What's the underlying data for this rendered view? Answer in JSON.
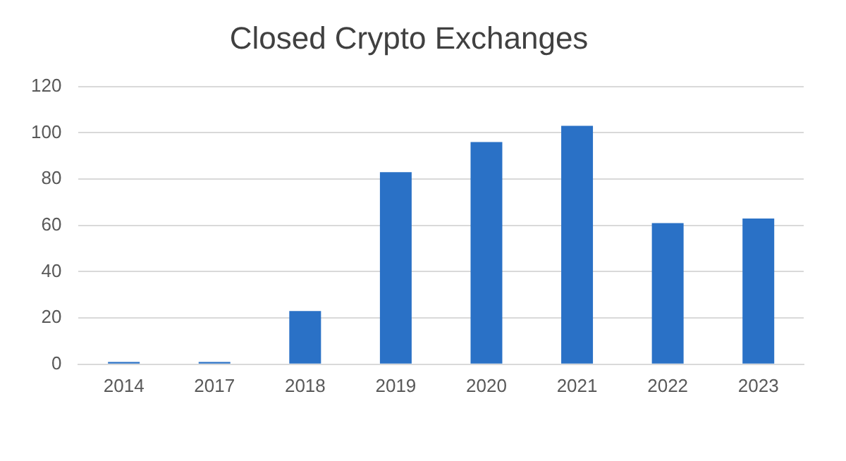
{
  "chart_data": {
    "type": "bar",
    "title": "Closed Crypto Exchanges",
    "categories": [
      "2014",
      "2017",
      "2018",
      "2019",
      "2020",
      "2021",
      "2022",
      "2023"
    ],
    "values": [
      1,
      1,
      23,
      83,
      96,
      103,
      61,
      63
    ],
    "color": "#2a71c6",
    "ylim": [
      0,
      120
    ],
    "yticks": [
      0,
      20,
      40,
      60,
      80,
      100,
      120
    ],
    "grid": "y"
  }
}
